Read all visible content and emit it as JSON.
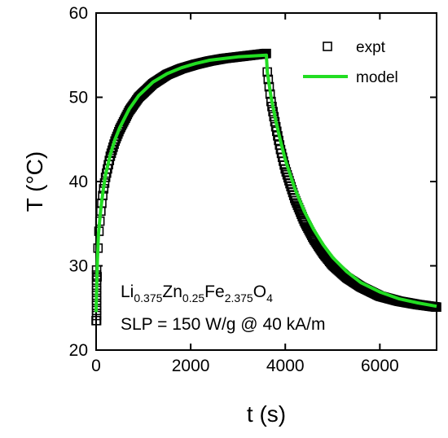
{
  "chart_data": {
    "type": "scatter",
    "xlabel": "t (s)",
    "ylabel": "T (°C)",
    "xlim": [
      0,
      7200
    ],
    "ylim": [
      20,
      60
    ],
    "x_ticks": [
      0,
      2000,
      4000,
      6000
    ],
    "y_ticks": [
      20,
      30,
      40,
      50,
      60
    ],
    "grid": false,
    "legend_position": "top-right",
    "legend": [
      {
        "label": "expt",
        "marker": "open-square",
        "color": "#000000"
      },
      {
        "label": "model",
        "marker": "line",
        "color": "#22dd22"
      }
    ],
    "annotation": {
      "formula": {
        "parts": [
          {
            "text": "Li",
            "sub": "0.375"
          },
          {
            "text": "Zn",
            "sub": "0.25"
          },
          {
            "text": "Fe",
            "sub": "2.375"
          },
          {
            "text": "O",
            "sub": "4"
          }
        ]
      },
      "slp_text": "SLP = 150 W/g @ 40 kA/m"
    },
    "series": [
      {
        "name": "expt",
        "color": "#000000",
        "marker": "open-square",
        "x": [
          0,
          25,
          50,
          100,
          150,
          200,
          300,
          400,
          500,
          700,
          900,
          1200,
          1500,
          1800,
          2100,
          2400,
          2700,
          3000,
          3300,
          3600,
          3620,
          3700,
          3800,
          3900,
          4000,
          4200,
          4400,
          4600,
          4800,
          5000,
          5300,
          5600,
          6000,
          6400,
          6800,
          7200
        ],
        "y": [
          23.5,
          30.0,
          33.5,
          36.5,
          38.8,
          40.5,
          43.0,
          44.8,
          46.2,
          48.4,
          50.0,
          51.6,
          52.7,
          53.4,
          53.9,
          54.3,
          54.6,
          54.8,
          55.0,
          55.2,
          53.0,
          49.5,
          46.5,
          43.8,
          41.5,
          38.0,
          35.3,
          33.2,
          31.5,
          30.1,
          28.6,
          27.5,
          26.4,
          25.8,
          25.4,
          25.1
        ]
      },
      {
        "name": "model",
        "color": "#22dd22",
        "x": [
          0,
          25,
          50,
          100,
          150,
          200,
          300,
          400,
          500,
          700,
          900,
          1200,
          1500,
          1800,
          2100,
          2400,
          2700,
          3000,
          3300,
          3600,
          3620,
          3700,
          3800,
          3900,
          4000,
          4200,
          4400,
          4600,
          4800,
          5000,
          5300,
          5600,
          6000,
          6400,
          6800,
          7200
        ],
        "y": [
          24.5,
          30.5,
          33.8,
          36.8,
          39.0,
          40.8,
          43.2,
          45.0,
          46.4,
          48.6,
          50.2,
          51.8,
          52.8,
          53.5,
          54.0,
          54.4,
          54.6,
          54.8,
          54.9,
          55.0,
          53.0,
          50.0,
          47.2,
          44.8,
          42.6,
          39.2,
          36.5,
          34.3,
          32.5,
          31.0,
          29.3,
          28.0,
          26.9,
          26.1,
          25.6,
          25.2
        ]
      }
    ]
  }
}
